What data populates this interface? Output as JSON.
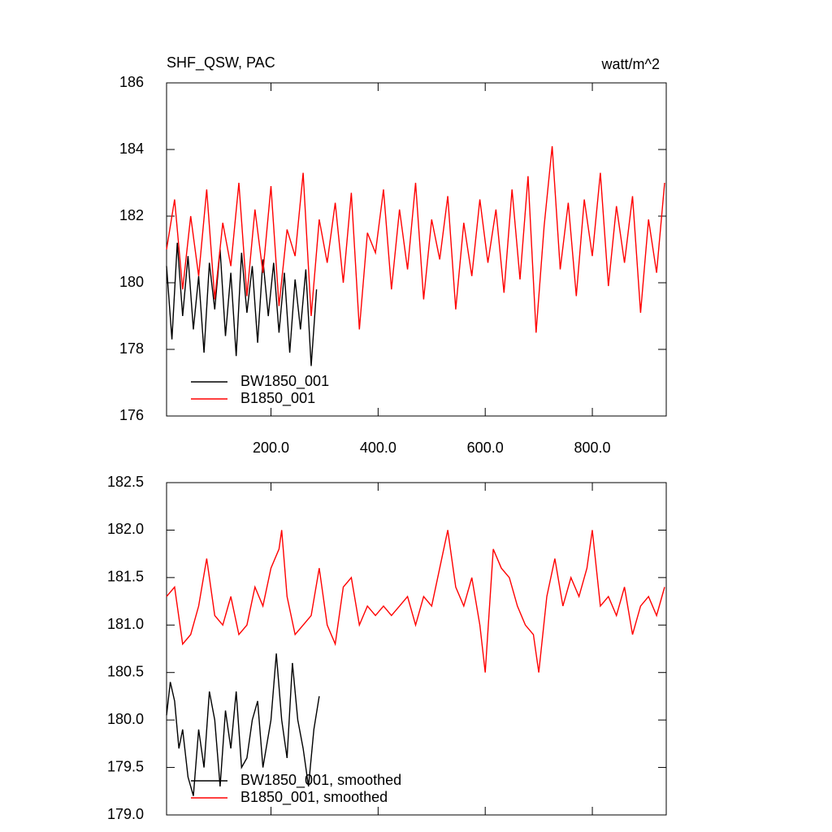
{
  "chart_data": [
    {
      "type": "line",
      "title": "SHF_QSW, PAC",
      "units": "watt/m^2",
      "xlim": [
        5,
        938
      ],
      "ylim": [
        176,
        186
      ],
      "xticks": [
        {
          "value": 200,
          "label": "200.0"
        },
        {
          "value": 400,
          "label": "400.0"
        },
        {
          "value": 600,
          "label": "600.0"
        },
        {
          "value": 800,
          "label": "800.0"
        }
      ],
      "xtick_labels": true,
      "yticks": [
        176,
        178,
        180,
        182,
        184,
        186
      ],
      "series": [
        {
          "name": "BW1850_001",
          "color": "#000000",
          "x": [
            5,
            15,
            25,
            35,
            45,
            55,
            65,
            75,
            85,
            95,
            105,
            115,
            125,
            135,
            145,
            155,
            165,
            175,
            185,
            195,
            205,
            215,
            225,
            235,
            245,
            255,
            265,
            275,
            285
          ],
          "values": [
            180.5,
            178.3,
            181.2,
            179.0,
            180.8,
            178.6,
            180.2,
            177.9,
            180.6,
            179.2,
            181.0,
            178.4,
            180.3,
            177.8,
            180.9,
            179.1,
            180.5,
            178.2,
            180.7,
            179.0,
            180.6,
            178.5,
            180.3,
            177.9,
            180.1,
            178.6,
            180.4,
            177.5,
            179.8
          ]
        },
        {
          "name": "B1850_001",
          "color": "#ff0000",
          "x": [
            5,
            20,
            35,
            50,
            65,
            80,
            95,
            110,
            125,
            140,
            155,
            170,
            185,
            200,
            215,
            230,
            245,
            260,
            275,
            290,
            305,
            320,
            335,
            350,
            365,
            380,
            395,
            410,
            425,
            440,
            455,
            470,
            485,
            500,
            515,
            530,
            545,
            560,
            575,
            590,
            605,
            620,
            635,
            650,
            665,
            680,
            695,
            710,
            725,
            740,
            755,
            770,
            785,
            800,
            815,
            830,
            845,
            860,
            875,
            890,
            905,
            920,
            935
          ],
          "values": [
            181.0,
            182.5,
            179.8,
            182.0,
            180.2,
            182.8,
            179.5,
            181.8,
            180.5,
            183.0,
            179.6,
            182.2,
            180.3,
            182.9,
            179.3,
            181.6,
            180.8,
            183.3,
            179.0,
            181.9,
            180.6,
            182.4,
            180.0,
            182.7,
            178.6,
            181.5,
            180.9,
            182.8,
            179.8,
            182.2,
            180.4,
            183.0,
            179.5,
            181.9,
            180.7,
            182.6,
            179.2,
            181.8,
            180.2,
            182.5,
            180.6,
            182.2,
            179.7,
            182.8,
            180.1,
            183.2,
            178.5,
            181.7,
            184.1,
            180.4,
            182.4,
            179.6,
            182.5,
            180.8,
            183.3,
            179.9,
            182.3,
            180.6,
            182.6,
            179.1,
            181.9,
            180.3,
            183.0
          ]
        }
      ]
    },
    {
      "type": "line",
      "xlim": [
        5,
        938
      ],
      "ylim": [
        179.0,
        182.5
      ],
      "xticks": [
        200,
        400,
        600,
        800
      ],
      "xtick_labels": false,
      "yticks": [
        {
          "value": 179,
          "label": "179.0"
        },
        179.5,
        {
          "value": 180,
          "label": "180.0"
        },
        180.5,
        {
          "value": 181,
          "label": "181.0"
        },
        181.5,
        {
          "value": 182,
          "label": "182.0"
        },
        182.5
      ],
      "series": [
        {
          "name": "BW1850_001, smoothed",
          "color": "#000000",
          "x": [
            5,
            12,
            20,
            28,
            35,
            45,
            55,
            65,
            75,
            85,
            95,
            105,
            115,
            125,
            135,
            145,
            155,
            165,
            175,
            185,
            200,
            210,
            220,
            230,
            240,
            250,
            260,
            270,
            280,
            290
          ],
          "values": [
            180.05,
            180.4,
            180.2,
            179.7,
            179.9,
            179.4,
            179.2,
            179.9,
            179.5,
            180.3,
            180.0,
            179.3,
            180.1,
            179.7,
            180.3,
            179.5,
            179.6,
            180.0,
            180.2,
            179.5,
            180.0,
            180.7,
            180.0,
            179.6,
            180.6,
            180.0,
            179.7,
            179.3,
            179.9,
            180.25
          ]
        },
        {
          "name": "B1850_001, smoothed",
          "color": "#ff0000",
          "x": [
            5,
            20,
            35,
            50,
            65,
            80,
            95,
            110,
            125,
            140,
            155,
            170,
            185,
            200,
            215,
            220,
            230,
            245,
            260,
            275,
            290,
            305,
            320,
            335,
            350,
            365,
            380,
            395,
            410,
            425,
            440,
            455,
            470,
            485,
            500,
            515,
            530,
            545,
            560,
            575,
            590,
            600,
            615,
            630,
            645,
            660,
            675,
            690,
            700,
            715,
            730,
            745,
            760,
            775,
            790,
            800,
            815,
            830,
            845,
            860,
            875,
            890,
            905,
            920,
            935
          ],
          "values": [
            181.3,
            181.4,
            180.8,
            180.9,
            181.2,
            181.7,
            181.1,
            181.0,
            181.3,
            180.9,
            181.0,
            181.4,
            181.2,
            181.6,
            181.8,
            182.0,
            181.3,
            180.9,
            181.0,
            181.1,
            181.6,
            181.0,
            180.8,
            181.4,
            181.5,
            181.0,
            181.2,
            181.1,
            181.2,
            181.1,
            181.2,
            181.3,
            181.0,
            181.3,
            181.2,
            181.6,
            182.0,
            181.4,
            181.2,
            181.5,
            181.0,
            180.5,
            181.8,
            181.6,
            181.5,
            181.2,
            181.0,
            180.9,
            180.5,
            181.3,
            181.7,
            181.2,
            181.5,
            181.3,
            181.6,
            182.0,
            181.2,
            181.3,
            181.1,
            181.4,
            180.9,
            181.2,
            181.3,
            181.1,
            181.4
          ]
        }
      ]
    }
  ]
}
